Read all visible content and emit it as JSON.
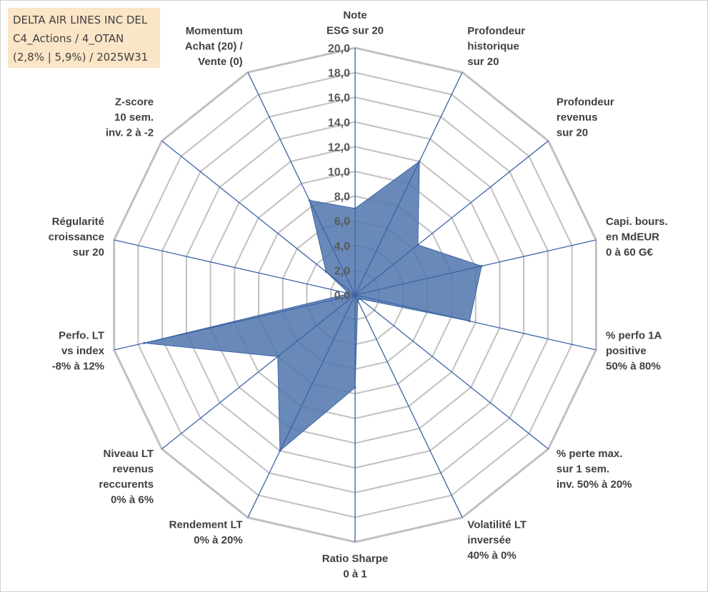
{
  "title_box": {
    "lines": [
      "DELTA AIR LINES INC DEL",
      "C4_Actions / 4_OTAN",
      "(2,8% | 5,9%) / 2025W31"
    ]
  },
  "chart_data": {
    "type": "radar",
    "rmin": 0,
    "rmax": 20,
    "tick_step": 2,
    "tick_labels": [
      "0,0",
      "2,0",
      "4,0",
      "6,0",
      "8,0",
      "10,0",
      "12,0",
      "14,0",
      "16,0",
      "18,0",
      "20,0"
    ],
    "grid": true,
    "fill_color": "#4f75ad",
    "line_color": "#3b63a6",
    "grid_color": "#c0c0c0",
    "axes": [
      {
        "label": [
          "Note",
          "ESG sur 20"
        ]
      },
      {
        "label": [
          "Profondeur",
          "historique",
          "sur 20"
        ]
      },
      {
        "label": [
          "Profondeur",
          "revenus",
          "sur 20"
        ]
      },
      {
        "label": [
          "Capi. bours.",
          "en MdEUR",
          "0 à 60 G€"
        ]
      },
      {
        "label": [
          "% perfo 1A",
          "positive",
          "50% à 80%"
        ]
      },
      {
        "label": [
          "% perte max.",
          "sur 1 sem.",
          "inv. 50% à 20%"
        ]
      },
      {
        "label": [
          "Volatilité LT",
          "inversée",
          "40% à 0%"
        ]
      },
      {
        "label": [
          "Ratio Sharpe",
          "0 à 1"
        ]
      },
      {
        "label": [
          "Rendement LT",
          "0% à 20%"
        ]
      },
      {
        "label": [
          "Niveau LT",
          "revenus",
          "reccurents",
          "0% à 6%"
        ]
      },
      {
        "label": [
          "Perfo. LT",
          "vs index",
          "-8% à 12%"
        ]
      },
      {
        "label": [
          "Régularité",
          "croissance",
          "sur 20"
        ]
      },
      {
        "label": [
          "Z-score",
          "10 sem.",
          "inv. 2 à -2"
        ]
      },
      {
        "label": [
          "Momentum",
          "Achat (20) /",
          "Vente (0)"
        ]
      }
    ],
    "series": [
      {
        "values": [
          7.0,
          12.0,
          6.5,
          10.5,
          9.5,
          0.5,
          0.5,
          7.5,
          14.0,
          8.0,
          17.5,
          0.5,
          3.0,
          8.5
        ]
      }
    ]
  }
}
